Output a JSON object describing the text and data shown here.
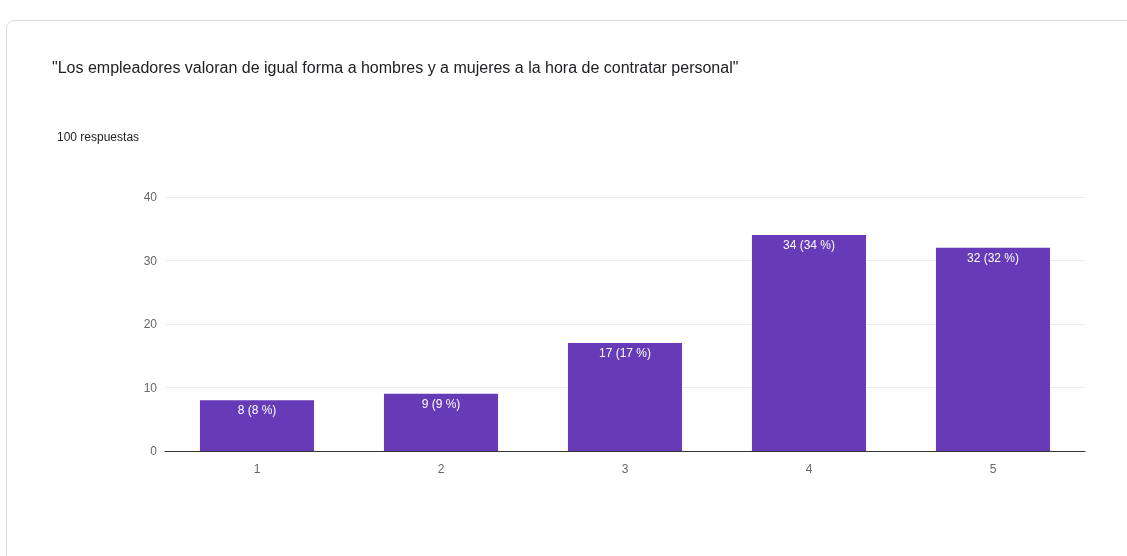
{
  "chart_data": {
    "type": "bar",
    "title": "\"Los empleadores valoran de igual forma a hombres y a mujeres a la hora de contratar personal\"",
    "subtitle": "100 respuestas",
    "categories": [
      "1",
      "2",
      "3",
      "4",
      "5"
    ],
    "values": [
      8,
      9,
      17,
      34,
      32
    ],
    "value_labels": [
      "8 (8 %)",
      "9 (9 %)",
      "17 (17 %)",
      "34 (34 %)",
      "32 (32 %)"
    ],
    "color": "#673ab7",
    "ylim": [
      0,
      40
    ],
    "yticks": [
      0,
      10,
      20,
      30,
      40
    ],
    "grid": "y"
  }
}
